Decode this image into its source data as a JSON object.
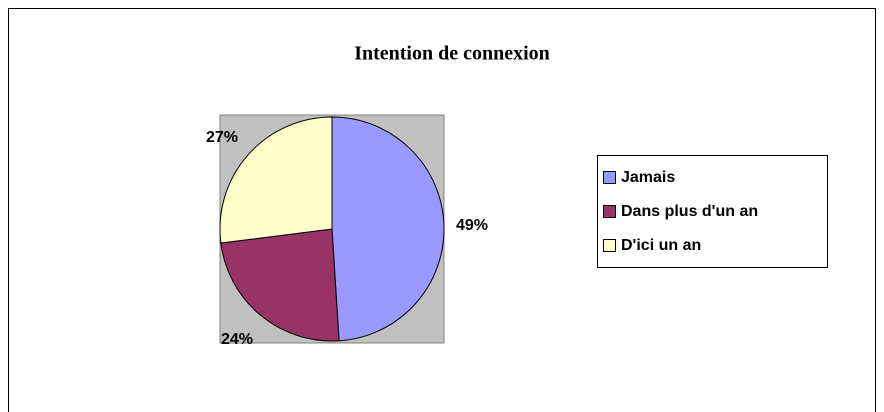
{
  "chart_data": {
    "type": "pie",
    "title": "Intention de connexion",
    "categories": [
      "Jamais",
      "Dans plus d'un an",
      "D'ici un an"
    ],
    "values": [
      49,
      24,
      27
    ],
    "value_labels": [
      "49%",
      "24%",
      "27%"
    ],
    "colors": [
      "#9999ff",
      "#993366",
      "#ffffcc"
    ],
    "legend": "right"
  }
}
